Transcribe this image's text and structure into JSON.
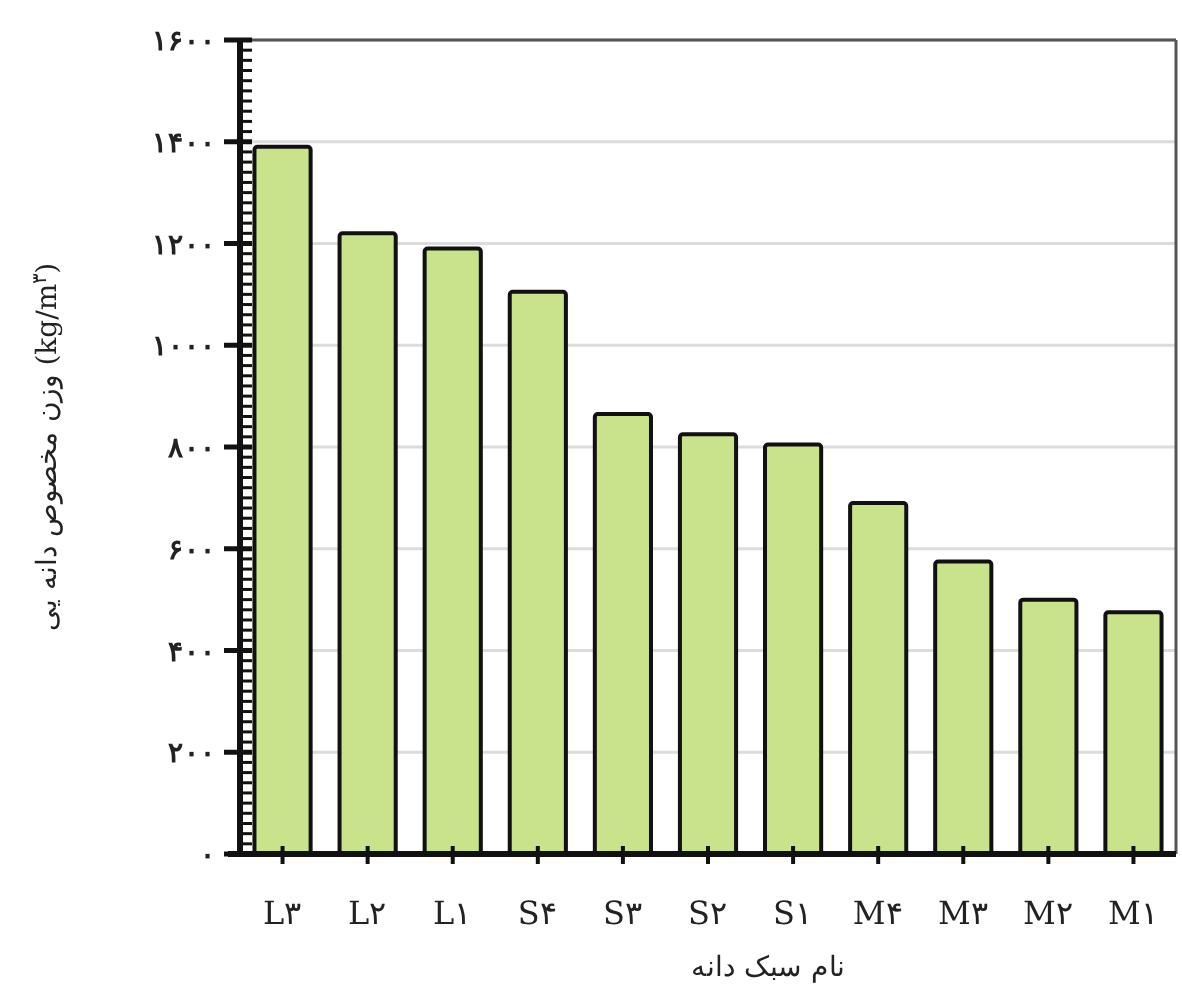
{
  "chart_data": {
    "type": "bar",
    "xlabel": "نام سبک دانه",
    "ylabel": "وزن مخصوص دانه یی (kg/m$^{۳}$)",
    "categories": [
      "L۳",
      "L۲",
      "L۱",
      "S۴",
      "S۳",
      "S۲",
      "S۱",
      "M۴",
      "M۳",
      "M۲",
      "M۱"
    ],
    "values": [
      1390,
      1220,
      1190,
      1105,
      865,
      825,
      805,
      690,
      575,
      500,
      475
    ],
    "color": "#c8e38b",
    "ylim": [
      0,
      1600
    ],
    "yticks": [
      {
        "value": 0,
        "label": "۰"
      },
      {
        "value": 200,
        "label": "۲۰۰"
      },
      {
        "value": 400,
        "label": "۴۰۰"
      },
      {
        "value": 600,
        "label": "۶۰۰"
      },
      {
        "value": 800,
        "label": "۸۰۰"
      },
      {
        "value": 1000,
        "label": "۱۰۰۰"
      },
      {
        "value": 1200,
        "label": "۱۲۰۰"
      },
      {
        "value": 1400,
        "label": "۱۴۰۰"
      },
      {
        "value": 1600,
        "label": "۱۶۰۰"
      }
    ],
    "grid": "y"
  }
}
